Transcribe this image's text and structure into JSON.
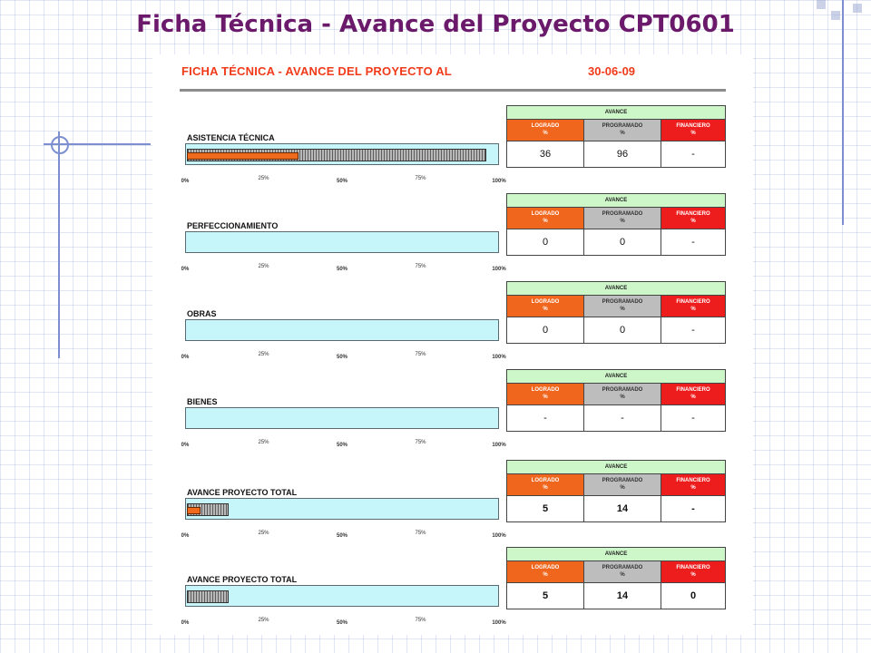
{
  "slide": {
    "title": "Ficha Técnica - Avance del Proyecto CPT0601"
  },
  "sheet": {
    "title": "FICHA TÉCNICA - AVANCE DEL PROYECTO AL",
    "date": "30-06-09"
  },
  "table_labels": {
    "header": "AVANCE",
    "logrado": "LOGRADO",
    "programado": "PROGRAMADO",
    "financiero": "FINANCIERO",
    "unit": "%"
  },
  "axis": {
    "ticks": [
      {
        "label": "0%",
        "value": 0
      },
      {
        "label": "25%",
        "value": 25
      },
      {
        "label": "50%",
        "value": 50
      },
      {
        "label": "75%",
        "value": 75
      },
      {
        "label": "100%",
        "value": 100
      }
    ]
  },
  "colors": {
    "logrado": "#f0661c",
    "programado": "#bdbdbd",
    "financiero": "#ee1d1d",
    "bar_background": "#c6f6fa",
    "table_header": "#cdf7c8",
    "title": "#6b1a6b",
    "sheet_title": "#f03a1a"
  },
  "chart_data": {
    "type": "bar",
    "orientation": "horizontal",
    "xlim": [
      0,
      100
    ],
    "categories": [
      "ASISTENCIA TÉCNICA",
      "PERFECCIONAMIENTO",
      "OBRAS",
      "BIENES",
      "AVANCE PROYECTO TOTAL",
      "AVANCE PROYECTO TOTAL"
    ],
    "sections": [
      {
        "label": "ASISTENCIA TÉCNICA",
        "logrado": 36,
        "programado": 96,
        "financiero": null,
        "display": {
          "logrado": "36",
          "programado": "96",
          "financiero": "-"
        },
        "bold": false
      },
      {
        "label": "PERFECCIONAMIENTO",
        "logrado": 0,
        "programado": 0,
        "financiero": null,
        "display": {
          "logrado": "0",
          "programado": "0",
          "financiero": "-"
        },
        "bold": false
      },
      {
        "label": "OBRAS",
        "logrado": 0,
        "programado": 0,
        "financiero": null,
        "display": {
          "logrado": "0",
          "programado": "0",
          "financiero": "-"
        },
        "bold": false
      },
      {
        "label": "BIENES",
        "logrado": null,
        "programado": null,
        "financiero": null,
        "display": {
          "logrado": "-",
          "programado": "-",
          "financiero": "-"
        },
        "bold": false
      },
      {
        "label": "AVANCE PROYECTO TOTAL",
        "logrado": 5,
        "programado": 14,
        "financiero": null,
        "display": {
          "logrado": "5",
          "programado": "14",
          "financiero": "-"
        },
        "bold": true
      },
      {
        "label": "AVANCE PROYECTO TOTAL",
        "logrado": null,
        "programado": 14,
        "financiero": 0,
        "display": {
          "logrado": "5",
          "programado": "14",
          "financiero": "0"
        },
        "bold": true
      }
    ]
  }
}
